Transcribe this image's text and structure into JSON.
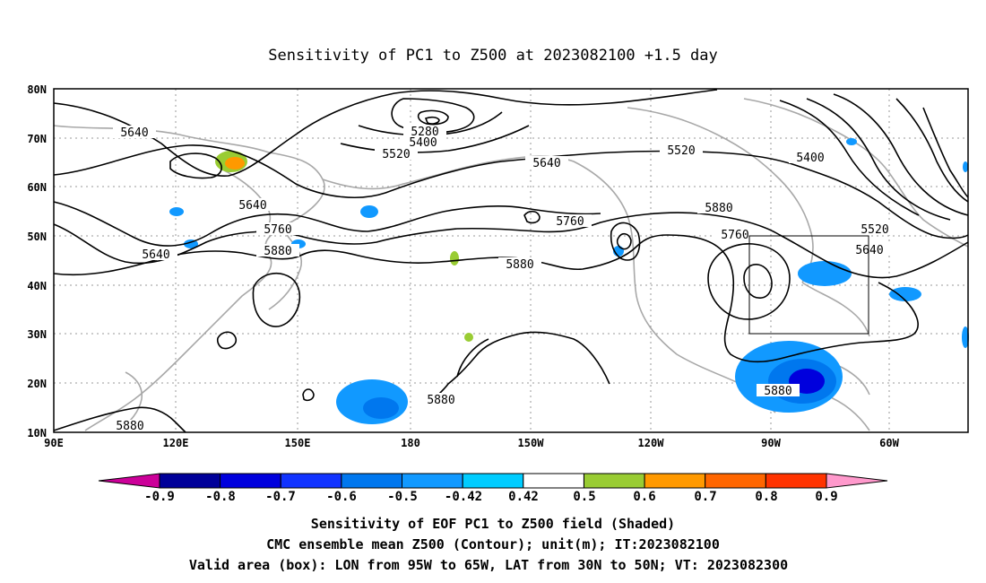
{
  "title": "Sensitivity of PC1 to Z500 at 2023082100 +1.5 day",
  "lat_ticks": [
    "80N",
    "70N",
    "60N",
    "50N",
    "40N",
    "30N",
    "20N",
    "10N"
  ],
  "lon_ticks": [
    "90E",
    "120E",
    "150E",
    "180",
    "150W",
    "120W",
    "90W",
    "60W"
  ],
  "contour_labels": [
    "5640",
    "5280",
    "5400",
    "5520",
    "5640",
    "5520",
    "5400",
    "5640",
    "5760",
    "5880",
    "5640",
    "5760",
    "5880",
    "5520",
    "5640",
    "5760",
    "5880",
    "5880",
    "5880",
    "5880"
  ],
  "colorbar": {
    "labels": [
      "-0.9",
      "-0.8",
      "-0.7",
      "-0.6",
      "-0.5",
      "-0.42",
      "0.42",
      "0.5",
      "0.6",
      "0.7",
      "0.8",
      "0.9"
    ],
    "colors": [
      "#000099",
      "#0000dd",
      "#1133ff",
      "#0077ee",
      "#1199ff",
      "#00ccff",
      "#ffffff",
      "#99cc33",
      "#ff9900",
      "#ff6600",
      "#ff3300",
      "#ff0000"
    ],
    "left_arrow_color": "#cc0099",
    "right_arrow_color": "#ff99cc"
  },
  "valid_box": {
    "lon_from": "95W",
    "lon_to": "65W",
    "lat_from": "30N",
    "lat_to": "50N"
  },
  "caption": {
    "line1": "Sensitivity of EOF PC1 to Z500 field (Shaded)",
    "line2": "CMC ensemble mean Z500 (Contour); unit(m); IT:2023082100",
    "line3": "Valid area (box): LON from 95W to 65W, LAT from 30N to 50N; VT: 2023082300"
  }
}
